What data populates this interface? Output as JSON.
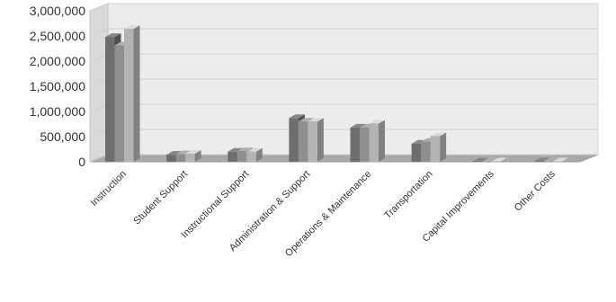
{
  "chart_data": {
    "type": "bar",
    "style": "3d-clustered-column",
    "title": "",
    "xlabel": "",
    "ylabel": "",
    "ylim": [
      0,
      3000000
    ],
    "yticks": [
      0,
      500000,
      1000000,
      1500000,
      2000000,
      2500000,
      3000000
    ],
    "ytick_labels": [
      "0",
      "500,000",
      "1,000,000",
      "1,500,000",
      "2,000,000",
      "2,500,000",
      "3,000,000"
    ],
    "grid": true,
    "legend": "none",
    "categories": [
      "Instruction",
      "Student Support",
      "Instructional Support",
      "Administration & Support",
      "Operations & Maintenance",
      "Transportation",
      "Capital Improvements",
      "Other Costs"
    ],
    "series": [
      {
        "color": "#6e6e6e",
        "values": [
          2480000,
          140000,
          200000,
          870000,
          680000,
          360000,
          10000,
          10000
        ]
      },
      {
        "color": "#8f8f8f",
        "values": [
          2310000,
          150000,
          210000,
          800000,
          680000,
          400000,
          8000,
          8000
        ]
      },
      {
        "color": "#b3b3b3",
        "values": [
          2640000,
          160000,
          200000,
          800000,
          760000,
          510000,
          8000,
          8000
        ]
      }
    ]
  }
}
